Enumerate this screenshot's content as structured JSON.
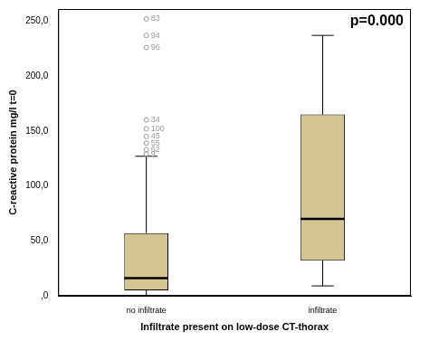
{
  "chart_data": {
    "type": "boxplot",
    "annotation": "p=0.000",
    "x_label": "Infiltrate present on low-dose CT-thorax",
    "y_label": "C-reactive protein mg/l t=0",
    "categories": [
      "no infiltrate",
      "infiltrate"
    ],
    "min": [
      0,
      9
    ],
    "q1": [
      5,
      32
    ],
    "median": [
      16,
      70
    ],
    "q3": [
      57,
      165
    ],
    "max": [
      127,
      237
    ],
    "outliers": [
      [
        {
          "value": 252,
          "label": "83"
        },
        {
          "value": 237,
          "label": "94"
        },
        {
          "value": 226,
          "label": "96"
        },
        {
          "value": 160,
          "label": "34"
        },
        {
          "value": 152,
          "label": "100"
        },
        {
          "value": 145,
          "label": "45"
        },
        {
          "value": 139,
          "label": "55"
        },
        {
          "value": 133,
          "label": "62"
        },
        {
          "value": 129,
          "label": "9"
        }
      ],
      []
    ],
    "color": "#d5c592",
    "ylim": [
      0,
      261
    ],
    "yticks": [
      {
        "value": 0,
        "label": ",0"
      },
      {
        "value": 50,
        "label": "50,0"
      },
      {
        "value": 100,
        "label": "100,0"
      },
      {
        "value": 150,
        "label": "150,0"
      },
      {
        "value": 200,
        "label": "200,0"
      },
      {
        "value": 250,
        "label": "250,0"
      }
    ],
    "grid": false
  }
}
